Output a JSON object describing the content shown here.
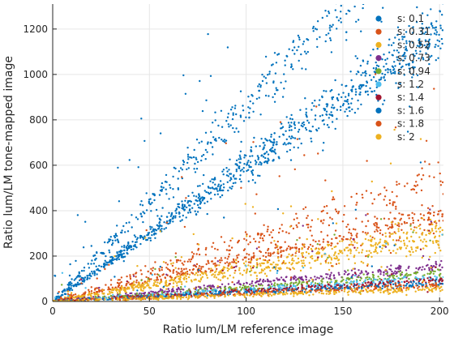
{
  "chart_data": {
    "type": "scatter",
    "title": "",
    "xlabel": "Ratio lum/LM reference image",
    "ylabel": "Ratio lum/LM tone-mapped image",
    "xlim": [
      0,
      202
    ],
    "ylim": [
      0,
      1310
    ],
    "x_ticks": [
      0,
      50,
      100,
      150,
      200
    ],
    "y_ticks": [
      0,
      200,
      400,
      600,
      800,
      1000,
      1200
    ],
    "grid": true,
    "legend_position": "top-right",
    "series": [
      {
        "name": "s: 0.1",
        "color": "#0072BD",
        "slope": 6.0,
        "spread": 0.06,
        "band_slope": 8.6
      },
      {
        "name": "s: 0.31",
        "color": "#D95319",
        "slope": 1.9,
        "spread": 0.08,
        "band_slope": 2.7
      },
      {
        "name": "s: 0.52",
        "color": "#EDB120",
        "slope": 1.45,
        "spread": 0.12
      },
      {
        "name": "s: 0.73",
        "color": "#7E2F8E",
        "slope": 0.78,
        "spread": 0.07
      },
      {
        "name": "s: 0.94",
        "color": "#77AC30",
        "slope": 0.62,
        "spread": 0.07
      },
      {
        "name": "s: 1.2",
        "color": "#4DBEEE",
        "slope": 0.52,
        "spread": 0.06
      },
      {
        "name": "s: 1.4",
        "color": "#A2142F",
        "slope": 0.46,
        "spread": 0.06
      },
      {
        "name": "s: 1.6",
        "color": "#0072BD",
        "slope": 0.4,
        "spread": 0.06
      },
      {
        "name": "s: 1.8",
        "color": "#D95319",
        "slope": 0.36,
        "spread": 0.07
      },
      {
        "name": "s: 2",
        "color": "#EDB120",
        "slope": 0.28,
        "spread": 0.1
      }
    ]
  }
}
